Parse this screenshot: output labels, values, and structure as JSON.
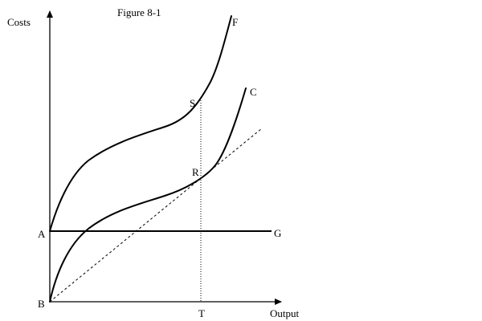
{
  "figure": {
    "title": "Figure 8-1",
    "y_axis_label": "Costs",
    "x_axis_label": "Output"
  },
  "points": {
    "A": "A",
    "B": "B",
    "C": "C",
    "F": "F",
    "G": "G",
    "R": "R",
    "S": "S",
    "T": "T"
  }
}
